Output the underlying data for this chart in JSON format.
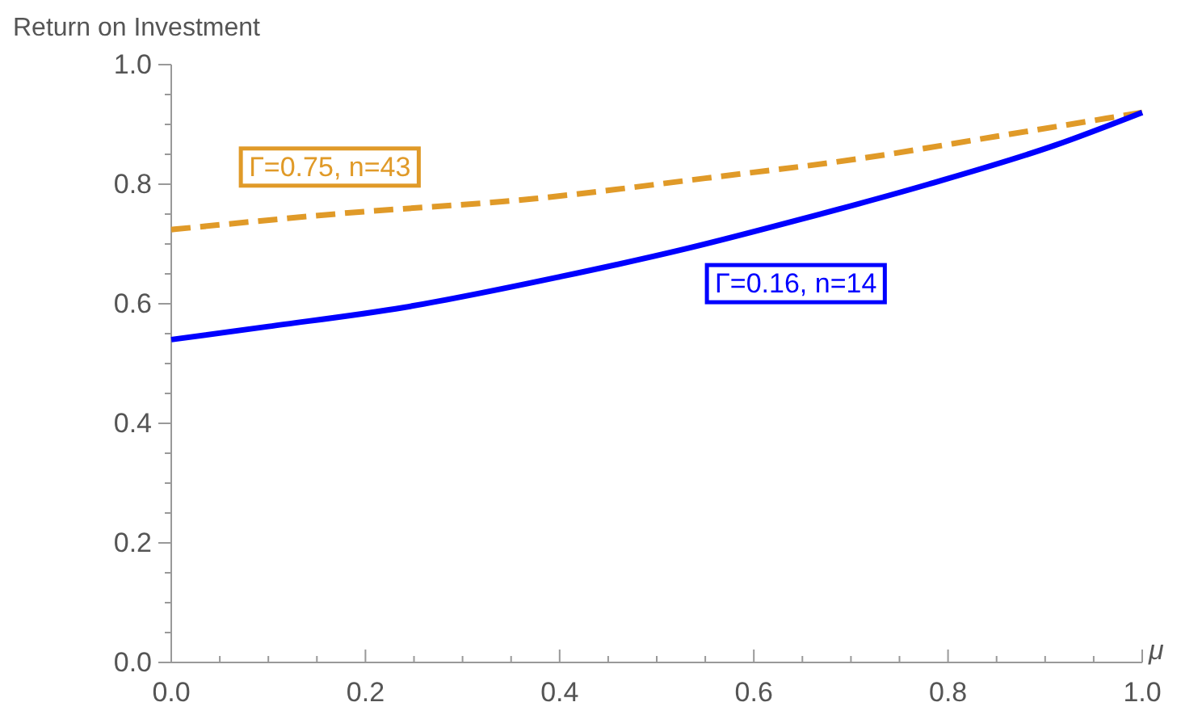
{
  "chart_data": {
    "type": "line",
    "ylabel": "Return on Investment",
    "xlabel": "μ",
    "xlim": [
      0,
      1
    ],
    "ylim": [
      0,
      1
    ],
    "xticks": [
      {
        "value": 0,
        "label": "0.0"
      },
      {
        "value": 0.05,
        "label": null
      },
      {
        "value": 0.1,
        "label": null
      },
      {
        "value": 0.15,
        "label": null
      },
      {
        "value": 0.2,
        "label": "0.2"
      },
      {
        "value": 0.25,
        "label": null
      },
      {
        "value": 0.3,
        "label": null
      },
      {
        "value": 0.35,
        "label": null
      },
      {
        "value": 0.4,
        "label": "0.4"
      },
      {
        "value": 0.45,
        "label": null
      },
      {
        "value": 0.5,
        "label": null
      },
      {
        "value": 0.55,
        "label": null
      },
      {
        "value": 0.6,
        "label": "0.6"
      },
      {
        "value": 0.65,
        "label": null
      },
      {
        "value": 0.7,
        "label": null
      },
      {
        "value": 0.75,
        "label": null
      },
      {
        "value": 0.8,
        "label": "0.8"
      },
      {
        "value": 0.85,
        "label": null
      },
      {
        "value": 0.9,
        "label": null
      },
      {
        "value": 0.95,
        "label": null
      },
      {
        "value": 1,
        "label": "1.0"
      }
    ],
    "yticks": [
      {
        "value": 0,
        "label": "0.0"
      },
      {
        "value": 0.05,
        "label": null
      },
      {
        "value": 0.1,
        "label": null
      },
      {
        "value": 0.15,
        "label": null
      },
      {
        "value": 0.2,
        "label": "0.2"
      },
      {
        "value": 0.25,
        "label": null
      },
      {
        "value": 0.3,
        "label": null
      },
      {
        "value": 0.35,
        "label": null
      },
      {
        "value": 0.4,
        "label": "0.4"
      },
      {
        "value": 0.45,
        "label": null
      },
      {
        "value": 0.5,
        "label": null
      },
      {
        "value": 0.55,
        "label": null
      },
      {
        "value": 0.6,
        "label": "0.6"
      },
      {
        "value": 0.65,
        "label": null
      },
      {
        "value": 0.7,
        "label": null
      },
      {
        "value": 0.75,
        "label": null
      },
      {
        "value": 0.8,
        "label": "0.8"
      },
      {
        "value": 0.85,
        "label": null
      },
      {
        "value": 0.9,
        "label": null
      },
      {
        "value": 0.95,
        "label": null
      },
      {
        "value": 1,
        "label": "1.0"
      }
    ],
    "legend": false,
    "marker": "none",
    "series": [
      {
        "name": "Γ=0.75, n=43",
        "color": "#e09a28",
        "line_style": "dashed",
        "x": [
          0,
          0.175,
          0.375,
          0.55,
          0.71,
          0.85,
          1
        ],
        "values": [
          0.724,
          0.751,
          0.776,
          0.81,
          0.843,
          0.88,
          0.92
        ]
      },
      {
        "name": "Γ=0.16, n=14",
        "color": "#0000ff",
        "line_style": "solid",
        "x": [
          0,
          0.1,
          0.24,
          0.4,
          0.53,
          0.65,
          0.78,
          0.91,
          1
        ],
        "values": [
          0.54,
          0.562,
          0.594,
          0.645,
          0.692,
          0.742,
          0.8,
          0.865,
          0.92
        ]
      }
    ]
  }
}
